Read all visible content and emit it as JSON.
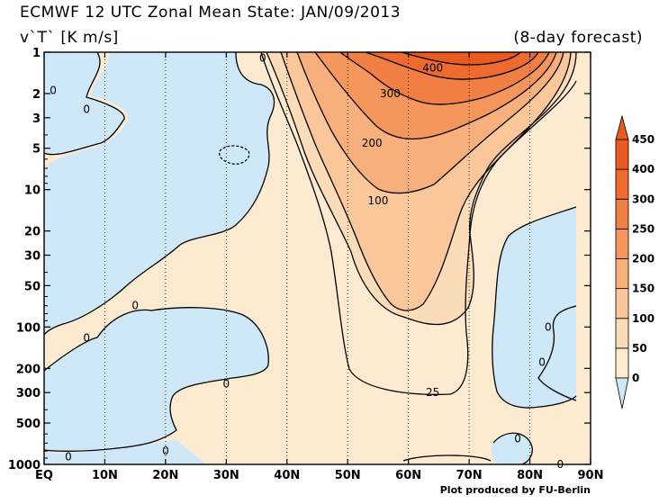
{
  "header": {
    "title": "ECMWF 12 UTC Zonal Mean State: JAN/09/2013",
    "units": "v`T` [K m/s]",
    "forecast": "(8-day forecast)"
  },
  "footer": {
    "credit": "Plot produced by FU-Berlin"
  },
  "colors": {
    "negative": "#cfe8f7",
    "band_0_50": "#fdebd1",
    "band_50_100": "#fbdcb8",
    "band_100_150": "#f9c79a",
    "band_150_200": "#f7b07c",
    "band_200_250": "#f5975d",
    "band_250_300": "#f17e42",
    "band_300_400": "#ee6a2e",
    "band_400_450": "#ea5a1e",
    "contour": "#000000"
  },
  "chart_data": {
    "type": "heatmap",
    "title": "ECMWF 12 UTC Zonal Mean State: JAN/09/2013",
    "subtitle": "(8-day forecast)",
    "variable": "v`T` [K m/s]",
    "x_ticks": [
      "EQ",
      "10N",
      "20N",
      "30N",
      "40N",
      "50N",
      "60N",
      "70N",
      "80N",
      "90N"
    ],
    "x_values": [
      0,
      10,
      20,
      30,
      40,
      50,
      60,
      70,
      80,
      90
    ],
    "y_ticks": [
      "1",
      "2",
      "3",
      "5",
      "10",
      "20",
      "30",
      "50",
      "100",
      "200",
      "300",
      "500",
      "1000"
    ],
    "y_values": [
      1,
      2,
      3,
      5,
      10,
      20,
      30,
      50,
      100,
      200,
      300,
      500,
      1000
    ],
    "y_scale": "log",
    "y_inverted": true,
    "xlim": [
      0,
      90
    ],
    "ylim": [
      1000,
      1
    ],
    "grid": "dotted vertical lines every 10 degrees",
    "colorbar": {
      "levels": [
        0,
        50,
        100,
        150,
        200,
        250,
        300,
        400,
        450
      ],
      "labels": [
        "0",
        "50",
        "100",
        "150",
        "200",
        "250",
        "300",
        "400",
        "450"
      ]
    },
    "contour_labels": [
      {
        "text": "400",
        "lat": 64,
        "p": 1.3
      },
      {
        "text": "300",
        "lat": 57,
        "p": 2.0
      },
      {
        "text": "200",
        "lat": 54,
        "p": 4.6
      },
      {
        "text": "100",
        "lat": 55,
        "p": 12
      },
      {
        "text": "25",
        "lat": 64,
        "p": 300
      },
      {
        "text": "0",
        "lat": 36,
        "p": 1.1
      },
      {
        "text": "0",
        "lat": 1.5,
        "p": 1.9
      },
      {
        "text": "0",
        "lat": 7,
        "p": 2.6
      },
      {
        "text": "0",
        "lat": 15,
        "p": 70
      },
      {
        "text": "0",
        "lat": 7,
        "p": 120
      },
      {
        "text": "0",
        "lat": 30,
        "p": 260
      },
      {
        "text": "0",
        "lat": 20,
        "p": 800
      },
      {
        "text": "0",
        "lat": 4,
        "p": 880
      },
      {
        "text": "0",
        "lat": 83,
        "p": 100
      },
      {
        "text": "0",
        "lat": 82,
        "p": 180
      },
      {
        "text": "0",
        "lat": 78,
        "p": 650
      },
      {
        "text": "0",
        "lat": 85,
        "p": 1000
      }
    ]
  }
}
